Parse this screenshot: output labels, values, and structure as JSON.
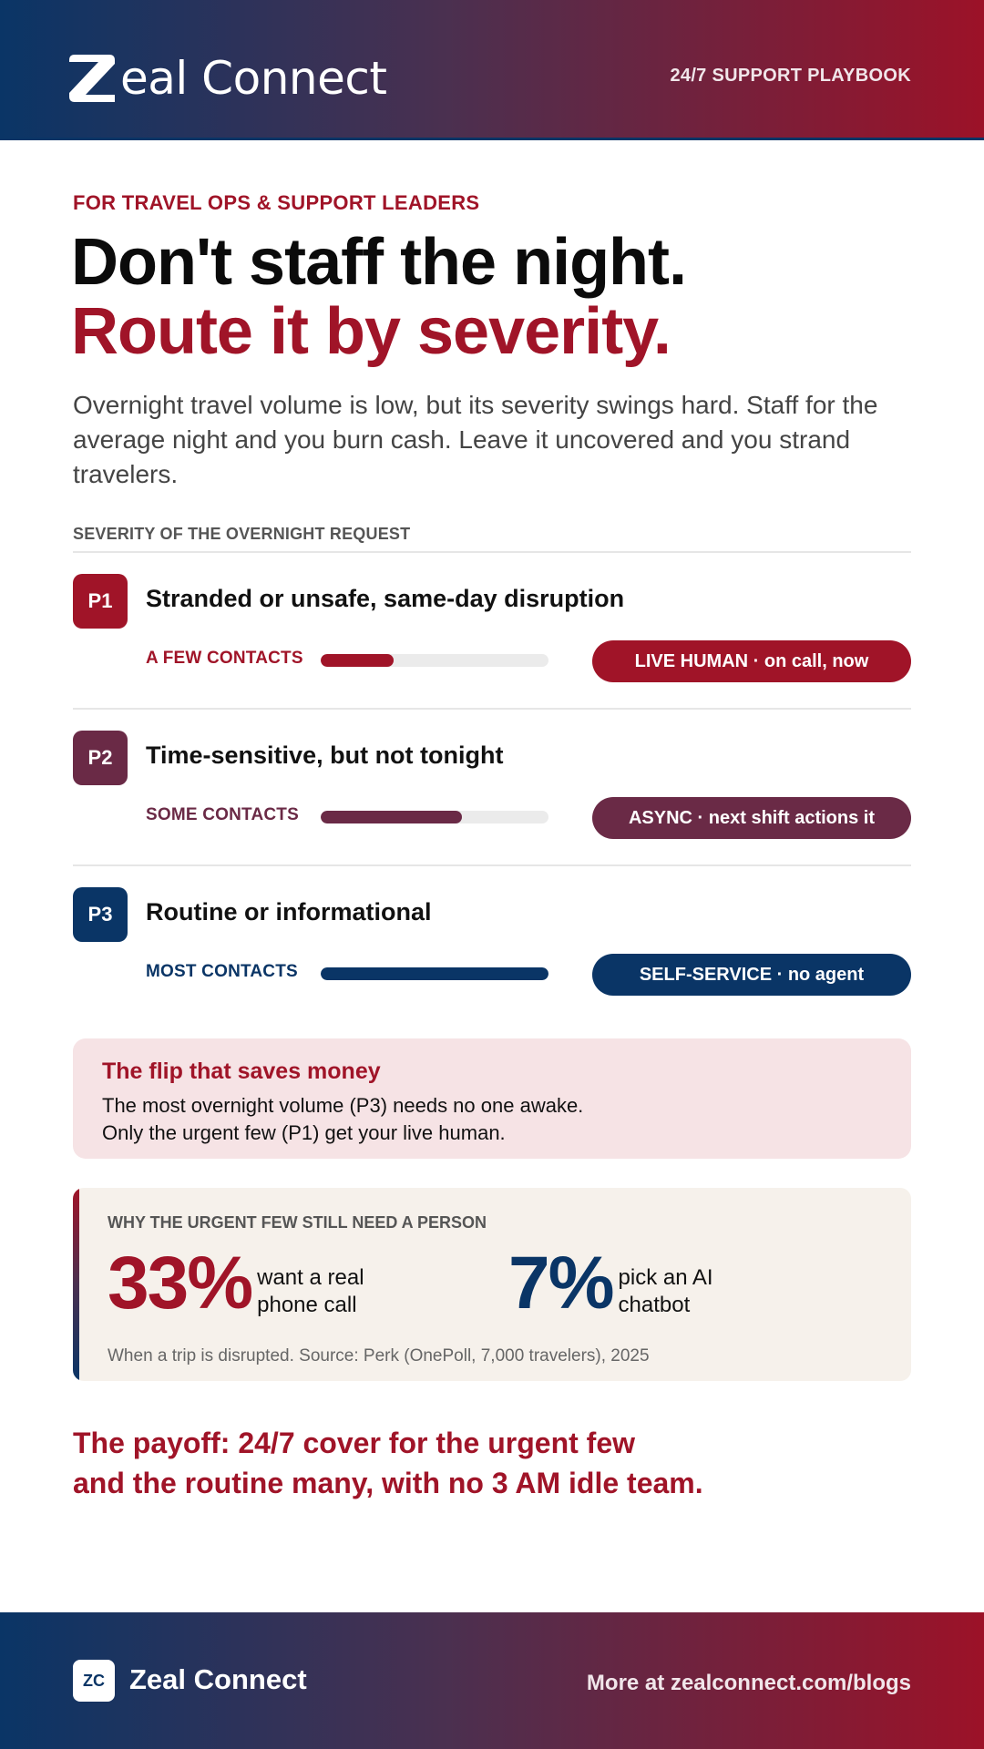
{
  "header": {
    "brand": "eal Connect",
    "tag": "24/7 SUPPORT PLAYBOOK"
  },
  "eyebrow": "FOR TRAVEL OPS & SUPPORT LEADERS",
  "headline": {
    "line1": "Don't staff the night.",
    "line2": "Route it by severity."
  },
  "lede": "Overnight travel volume is low, but its severity swings hard. Staff for the average night and you burn cash. Leave it uncovered and you strand travelers.",
  "severity": {
    "label": "SEVERITY OF THE OVERNIGHT REQUEST",
    "rows": [
      {
        "code": "P1",
        "title": "Stranded or unsafe, same-day disruption",
        "volume_label": "A FEW CONTACTS",
        "volume_share": 0.32,
        "action": "LIVE HUMAN · on call, now",
        "color": "#a01428"
      },
      {
        "code": "P2",
        "title": "Time-sensitive, but not tonight",
        "volume_label": "SOME CONTACTS",
        "volume_share": 0.62,
        "action": "ASYNC · next shift actions it",
        "color": "#6a2a46"
      },
      {
        "code": "P3",
        "title": "Routine or informational",
        "volume_label": "MOST CONTACTS",
        "volume_share": 1.0,
        "action": "SELF-SERVICE · no agent",
        "color": "#0a3566"
      }
    ]
  },
  "flip": {
    "title": "The flip that saves money",
    "line1": "The most overnight volume (P3) needs no one awake.",
    "line2": "Only the urgent few (P1) get your live human."
  },
  "why": {
    "label": "WHY THE URGENT FEW STILL NEED A PERSON",
    "stat1": {
      "value": "33%",
      "text": "want a real phone call",
      "color": "#a01428"
    },
    "stat2": {
      "value": "7%",
      "text": "pick an AI chatbot",
      "color": "#0a3566"
    },
    "source": "When a trip is disrupted. Source: Perk (OnePoll, 7,000 travelers), 2025"
  },
  "payoff": {
    "line1": "The payoff: 24/7 cover for the urgent few",
    "line2": "and the routine many, with no 3 AM idle team."
  },
  "footer": {
    "logo_text": "ZC",
    "brand": "Zeal Connect",
    "link": "More at zealconnect.com/blogs"
  }
}
